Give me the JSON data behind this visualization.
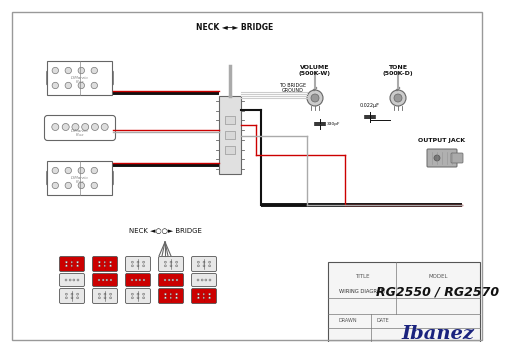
{
  "bg_color": "#ffffff",
  "inner_bg": "#ffffff",
  "title": "WIRING DIAGRAM",
  "model": "RG2550 / RG2570",
  "title_label": "TITLE",
  "model_label": "MODEL",
  "drawn_label": "DRAWN",
  "date_label": "DATE",
  "neck_bridge_top": "NECK ◄─► BRIDGE",
  "neck_bridge_bot": "NECK ◄○○► BRIDGE",
  "volume_label": "VOLUME\n(500K-W)",
  "tone_label": "TONE\n(500K-D)",
  "cap_label": "0.022μF",
  "cap2_label": "330pF",
  "to_bridge_label": "TO BRIDGE\nGROUND",
  "output_label": "OUTPUT JACK",
  "ibanez_color": "#1a237e",
  "red_color": "#cc0000",
  "line_black": "#111111",
  "line_red": "#cc0000",
  "line_gray": "#aaaaaa",
  "line_white": "#cccccc",
  "border_color": "#555555",
  "pickup_fill": "#ffffff",
  "dot_fill": "#dddddd",
  "switch_fill": "#e0e0e0",
  "pot_outer": "#cccccc",
  "pot_inner": "#999999",
  "jack_fill": "#aaaaaa",
  "tb_fill": "#f5f5f5"
}
